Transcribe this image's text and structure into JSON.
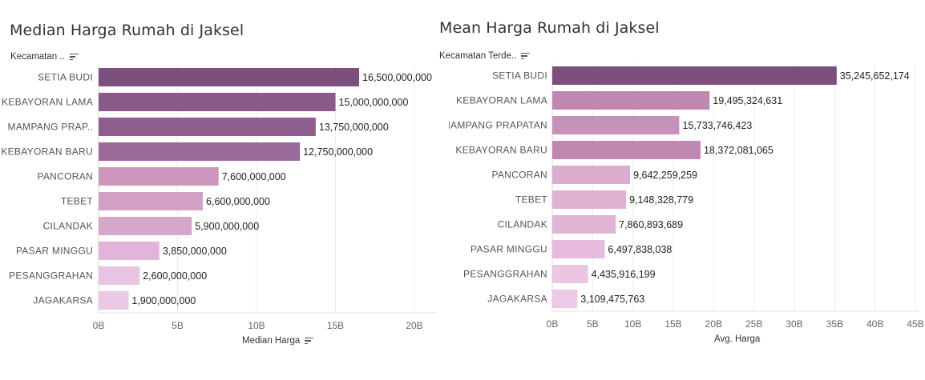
{
  "chart_data": [
    {
      "type": "bar",
      "orientation": "horizontal",
      "title": "Median Harga Rumah di Jaksel",
      "row_header": "Kecamatan ..",
      "xlabel": "Median Harga",
      "categories": [
        "SETIA BUDI",
        "KEBAYORAN LAMA",
        "MAMPANG PRAP..",
        "KEBAYORAN BARU",
        "PANCORAN",
        "TEBET",
        "CILANDAK",
        "PASAR MINGGU",
        "PESANGGRAHAN",
        "JAGAKARSA"
      ],
      "values": [
        16500000000,
        15000000000,
        13750000000,
        12750000000,
        7600000000,
        6600000000,
        5900000000,
        3850000000,
        2600000000,
        1900000000
      ],
      "data_labels": [
        "16,500,000,000",
        "15,000,000,000",
        "13,750,000,000",
        "12,750,000,000",
        "7,600,000,000",
        "6,600,000,000",
        "5,900,000,000",
        "3,850,000,000",
        "2,600,000,000",
        "1,900,000,000"
      ],
      "ticks": [
        0,
        5000000000,
        10000000000,
        15000000000,
        20000000000
      ],
      "tick_labels": [
        "0B",
        "5B",
        "10B",
        "15B",
        "20B"
      ],
      "xlim": [
        0,
        20000000000
      ],
      "grid": true,
      "colors": [
        "#7d4f7d",
        "#8a5a8a",
        "#8e5f8e",
        "#9a6b9a",
        "#cd97bd",
        "#d2a0c4",
        "#d5a7c8",
        "#e3b4d9",
        "#e9c4e2",
        "#ebc9e5"
      ]
    },
    {
      "type": "bar",
      "orientation": "horizontal",
      "title": "Mean Harga Rumah di Jaksel",
      "row_header": "Kecamatan Terde..",
      "xlabel": "Avg. Harga",
      "categories": [
        "SETIA BUDI",
        "KEBAYORAN LAMA",
        "MAMPANG PRAPATAN",
        "KEBAYORAN BARU",
        "PANCORAN",
        "TEBET",
        "CILANDAK",
        "PASAR MINGGU",
        "PESANGGRAHAN",
        "JAGAKARSA"
      ],
      "values": [
        35245652174,
        19495324631,
        15733746423,
        18372081065,
        9642259259,
        9148328779,
        7860893689,
        6497838038,
        4435916199,
        3109475763
      ],
      "data_labels": [
        "35,245,652,174",
        "19,495,324,631",
        "15,733,746,423",
        "18,372,081,065",
        "9,642,259,259",
        "9,148,328,779",
        "7,860,893,689",
        "6,497,838,038",
        "4,435,916,199",
        "3,109,475,763"
      ],
      "ticks": [
        0,
        5000000000,
        10000000000,
        15000000000,
        20000000000,
        25000000000,
        30000000000,
        35000000000,
        40000000000,
        45000000000
      ],
      "tick_labels": [
        "0B",
        "5B",
        "10B",
        "15B",
        "20B",
        "25B",
        "30B",
        "35B",
        "40B",
        "45B"
      ],
      "xlim": [
        0,
        45000000000
      ],
      "grid": true,
      "colors": [
        "#7d4f7d",
        "#c088b0",
        "#c592b9",
        "#c088b0",
        "#dcaccf",
        "#dfb2d2",
        "#e1b4d6",
        "#e6bbde",
        "#ebc6e3",
        "#ecc9e6"
      ]
    }
  ]
}
